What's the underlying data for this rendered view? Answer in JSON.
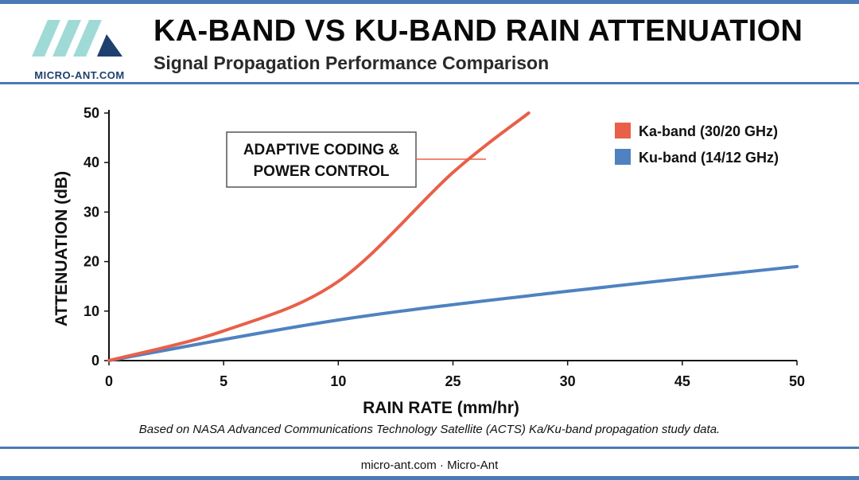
{
  "header": {
    "logo_text": "MICRO-ANT.COM",
    "title": "KA-BAND VS KU-BAND RAIN ATTENUATION",
    "subtitle": "Signal Propagation Performance Comparison"
  },
  "colors": {
    "accent": "#4a7ab8",
    "ka_band": "#e8604a",
    "ku_band": "#4f82c0"
  },
  "chart_data": {
    "type": "line",
    "xlabel": "RAIN RATE (mm/hr)",
    "ylabel": "ATTENUATION (dB)",
    "x_ticks": [
      "0",
      "5",
      "10",
      "25",
      "30",
      "45",
      "50"
    ],
    "y_ticks": [
      "0",
      "10",
      "20",
      "30",
      "40",
      "50"
    ],
    "ylim": [
      0,
      50
    ],
    "grid": false,
    "legend_position": "top-right",
    "series": [
      {
        "name": "Ka-band (30/20 GHz)",
        "color": "#e8604a",
        "points": [
          [
            0,
            0
          ],
          [
            5,
            6
          ],
          [
            10,
            16
          ],
          [
            25,
            38
          ],
          [
            28.3,
            50
          ]
        ]
      },
      {
        "name": "Ku-band (14/12 GHz)",
        "color": "#4f82c0",
        "points": [
          [
            0,
            0
          ],
          [
            10,
            8.2
          ],
          [
            30,
            14
          ],
          [
            50,
            19
          ]
        ]
      }
    ],
    "annotations": [
      {
        "lines": [
          "ADAPTIVE CODING &",
          "POWER CONTROL"
        ],
        "points_to_series": "Ka-band (30/20 GHz)"
      }
    ]
  },
  "footnote": "Based on NASA Advanced Communications Technology Satellite (ACTS) Ka/Ku-band propagation study data.",
  "footer": "micro-ant.com · Micro-Ant"
}
